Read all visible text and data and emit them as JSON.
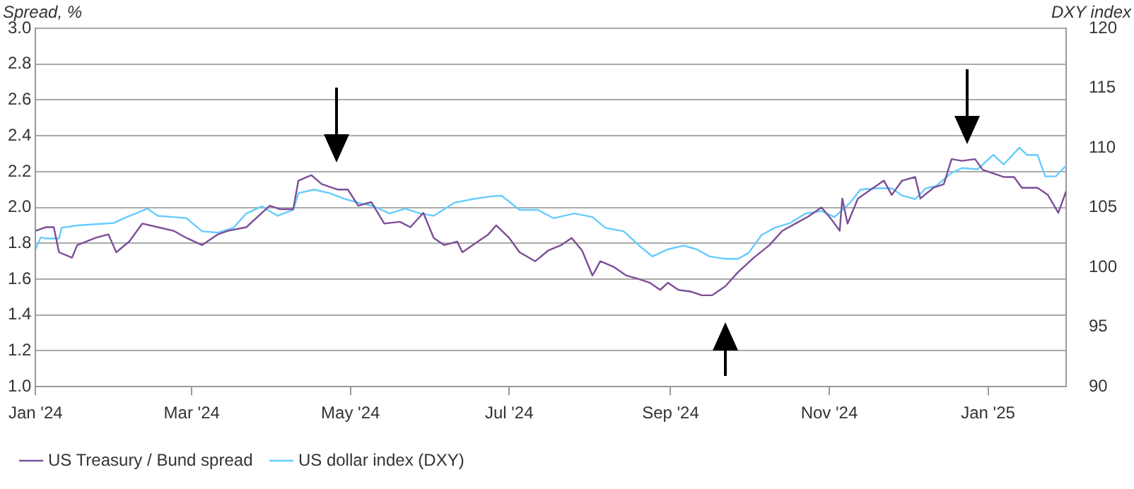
{
  "chart_data": {
    "type": "line",
    "xlabel": null,
    "ylabel": "Spread, %",
    "y2label": "DXY index",
    "xlim": [
      "2024-01-01",
      "2025-01-31"
    ],
    "xticks": [
      {
        "value": "2024-01-01",
        "label": "Jan '24"
      },
      {
        "value": "2024-03-01",
        "label": "Mar '24"
      },
      {
        "value": "2024-05-01",
        "label": "May '24"
      },
      {
        "value": "2024-07-01",
        "label": "Jul '24"
      },
      {
        "value": "2024-09-01",
        "label": "Sep '24"
      },
      {
        "value": "2024-11-01",
        "label": "Nov '24"
      },
      {
        "value": "2025-01-01",
        "label": "Jan '25"
      }
    ],
    "ylim": [
      1.0,
      3.0
    ],
    "yticks": [
      {
        "value": 1.0,
        "label": "1.0"
      },
      {
        "value": 1.2,
        "label": "1.2"
      },
      {
        "value": 1.4,
        "label": "1.4"
      },
      {
        "value": 1.6,
        "label": "1.6"
      },
      {
        "value": 1.8,
        "label": "1.8"
      },
      {
        "value": 2.0,
        "label": "2.0"
      },
      {
        "value": 2.2,
        "label": "2.2"
      },
      {
        "value": 2.4,
        "label": "2.4"
      },
      {
        "value": 2.6,
        "label": "2.6"
      },
      {
        "value": 2.8,
        "label": "2.8"
      },
      {
        "value": 3.0,
        "label": "3.0"
      }
    ],
    "y2lim": [
      90,
      120
    ],
    "y2ticks": [
      90,
      95,
      100,
      105,
      110,
      115,
      120
    ],
    "grid": "y",
    "legend": "bottom",
    "marker": "none",
    "line_style": "solid",
    "series": [
      {
        "name": "US Treasury / Bund spread",
        "color": "#7b4f96",
        "x": [
          "2024-01-01",
          "2024-01-05",
          "2024-01-08",
          "2024-01-10",
          "2024-01-15",
          "2024-01-17",
          "2024-01-24",
          "2024-01-29",
          "2024-02-01",
          "2024-02-06",
          "2024-02-11",
          "2024-02-17",
          "2024-02-23",
          "2024-02-28",
          "2024-03-05",
          "2024-03-11",
          "2024-03-15",
          "2024-03-22",
          "2024-03-28",
          "2024-03-31",
          "2024-04-04",
          "2024-04-09",
          "2024-04-11",
          "2024-04-16",
          "2024-04-20",
          "2024-04-26",
          "2024-04-30",
          "2024-05-04",
          "2024-05-09",
          "2024-05-14",
          "2024-05-20",
          "2024-05-24",
          "2024-05-29",
          "2024-06-02",
          "2024-06-06",
          "2024-06-11",
          "2024-06-13",
          "2024-06-19",
          "2024-06-23",
          "2024-06-26",
          "2024-07-01",
          "2024-07-05",
          "2024-07-11",
          "2024-07-16",
          "2024-07-21",
          "2024-07-25",
          "2024-07-29",
          "2024-08-02",
          "2024-08-05",
          "2024-08-10",
          "2024-08-15",
          "2024-08-20",
          "2024-08-24",
          "2024-08-28",
          "2024-08-31",
          "2024-09-04",
          "2024-09-09",
          "2024-09-13",
          "2024-09-17",
          "2024-09-22",
          "2024-09-27",
          "2024-10-03",
          "2024-10-09",
          "2024-10-14",
          "2024-10-19",
          "2024-10-24",
          "2024-10-29",
          "2024-11-02",
          "2024-11-05",
          "2024-11-06",
          "2024-11-08",
          "2024-11-12",
          "2024-11-16",
          "2024-11-22",
          "2024-11-25",
          "2024-11-29",
          "2024-12-04",
          "2024-12-06",
          "2024-12-11",
          "2024-12-15",
          "2024-12-18",
          "2024-12-22",
          "2024-12-27",
          "2024-12-30",
          "2025-01-03",
          "2025-01-07",
          "2025-01-11",
          "2025-01-14",
          "2025-01-20",
          "2025-01-24",
          "2025-01-28",
          "2025-01-31"
        ],
        "values": [
          1.87,
          1.89,
          1.89,
          1.75,
          1.72,
          1.79,
          1.83,
          1.85,
          1.75,
          1.81,
          1.91,
          1.89,
          1.87,
          1.83,
          1.79,
          1.85,
          1.87,
          1.89,
          1.97,
          2.01,
          1.99,
          1.99,
          2.15,
          2.18,
          2.13,
          2.1,
          2.1,
          2.01,
          2.03,
          1.91,
          1.92,
          1.89,
          1.97,
          1.83,
          1.79,
          1.81,
          1.75,
          1.81,
          1.85,
          1.9,
          1.83,
          1.75,
          1.7,
          1.76,
          1.79,
          1.83,
          1.76,
          1.62,
          1.7,
          1.67,
          1.62,
          1.6,
          1.58,
          1.54,
          1.58,
          1.54,
          1.53,
          1.51,
          1.51,
          1.56,
          1.64,
          1.72,
          1.79,
          1.87,
          1.91,
          1.95,
          2.0,
          1.93,
          1.87,
          2.05,
          1.91,
          2.05,
          2.09,
          2.15,
          2.07,
          2.15,
          2.17,
          2.05,
          2.11,
          2.13,
          2.27,
          2.26,
          2.27,
          2.21,
          2.19,
          2.17,
          2.17,
          2.11,
          2.11,
          2.07,
          1.97,
          2.09
        ]
      },
      {
        "name": "US dollar index (DXY)",
        "color": "#66ccff",
        "axis": "y2",
        "x": [
          "2024-01-01",
          "2024-01-03",
          "2024-01-05",
          "2024-01-10",
          "2024-01-11",
          "2024-01-17",
          "2024-01-24",
          "2024-01-31",
          "2024-02-05",
          "2024-02-13",
          "2024-02-17",
          "2024-02-23",
          "2024-02-28",
          "2024-03-05",
          "2024-03-11",
          "2024-03-17",
          "2024-03-22",
          "2024-03-28",
          "2024-04-03",
          "2024-04-09",
          "2024-04-11",
          "2024-04-17",
          "2024-04-23",
          "2024-04-29",
          "2024-05-04",
          "2024-05-10",
          "2024-05-16",
          "2024-05-22",
          "2024-05-28",
          "2024-06-02",
          "2024-06-10",
          "2024-06-17",
          "2024-06-23",
          "2024-06-28",
          "2024-07-05",
          "2024-07-12",
          "2024-07-18",
          "2024-07-26",
          "2024-08-02",
          "2024-08-07",
          "2024-08-14",
          "2024-08-20",
          "2024-08-25",
          "2024-08-31",
          "2024-09-06",
          "2024-09-11",
          "2024-09-16",
          "2024-09-22",
          "2024-09-27",
          "2024-10-01",
          "2024-10-06",
          "2024-10-11",
          "2024-10-17",
          "2024-10-23",
          "2024-10-29",
          "2024-11-03",
          "2024-11-09",
          "2024-11-13",
          "2024-11-19",
          "2024-11-25",
          "2024-11-29",
          "2024-12-04",
          "2024-12-08",
          "2024-12-12",
          "2024-12-18",
          "2024-12-22",
          "2024-12-28",
          "2025-01-03",
          "2025-01-07",
          "2025-01-13",
          "2025-01-16",
          "2025-01-20",
          "2025-01-23",
          "2025-01-27",
          "2025-01-31"
        ],
        "values": [
          101.5,
          102.5,
          102.4,
          102.4,
          103.3,
          103.5,
          103.6,
          103.7,
          104.2,
          104.9,
          104.3,
          104.2,
          104.1,
          103.0,
          102.9,
          103.3,
          104.5,
          105.1,
          104.3,
          104.8,
          106.2,
          106.5,
          106.2,
          105.7,
          105.4,
          105.1,
          104.5,
          104.9,
          104.5,
          104.3,
          105.4,
          105.7,
          105.9,
          106.0,
          104.8,
          104.8,
          104.1,
          104.5,
          104.2,
          103.3,
          103.0,
          101.8,
          100.9,
          101.5,
          101.8,
          101.5,
          100.9,
          100.7,
          100.7,
          101.2,
          102.7,
          103.3,
          103.7,
          104.5,
          104.7,
          104.2,
          105.4,
          106.5,
          106.6,
          106.6,
          106.0,
          105.7,
          106.6,
          106.8,
          107.9,
          108.3,
          108.2,
          109.4,
          108.6,
          110.0,
          109.4,
          109.4,
          107.6,
          107.6,
          108.5
        ]
      }
    ]
  }
}
